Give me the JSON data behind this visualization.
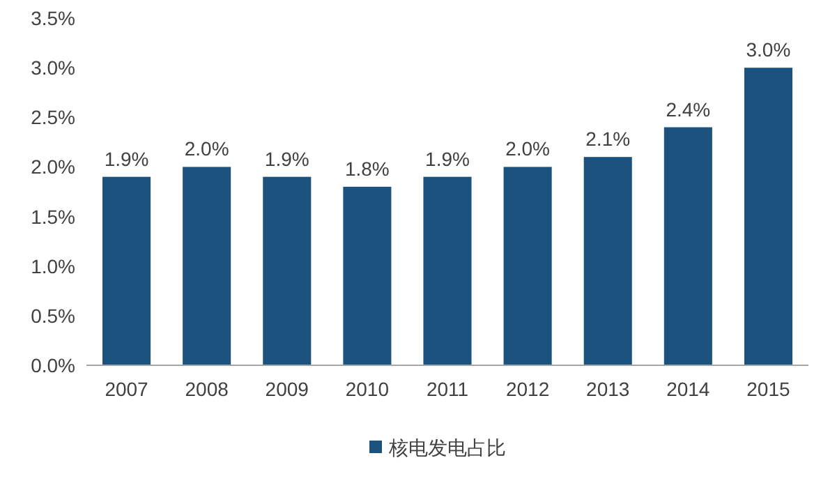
{
  "chart_data": {
    "type": "bar",
    "categories": [
      "2007",
      "2008",
      "2009",
      "2010",
      "2011",
      "2012",
      "2013",
      "2014",
      "2015"
    ],
    "series": [
      {
        "name": "核电发电占比",
        "color": "#1b527e",
        "values": [
          1.9,
          2.0,
          1.9,
          1.8,
          1.9,
          2.0,
          2.1,
          2.4,
          3.0
        ]
      }
    ],
    "ylim": [
      0,
      3.5
    ],
    "yticks": [
      {
        "value": 0,
        "label": "0.0%"
      },
      {
        "value": 0.5,
        "label": "0.5%"
      },
      {
        "value": 1,
        "label": "1.0%"
      },
      {
        "value": 1.5,
        "label": "1.5%"
      },
      {
        "value": 2,
        "label": "2.0%"
      },
      {
        "value": 2.5,
        "label": "2.5%"
      },
      {
        "value": 3,
        "label": "3.0%"
      },
      {
        "value": 3.5,
        "label": "3.5%"
      }
    ],
    "value_labels": [
      "1.9%",
      "2.0%",
      "1.9%",
      "1.8%",
      "1.9%",
      "2.0%",
      "2.1%",
      "2.4%",
      "3.0%"
    ],
    "legend": "bottom"
  }
}
